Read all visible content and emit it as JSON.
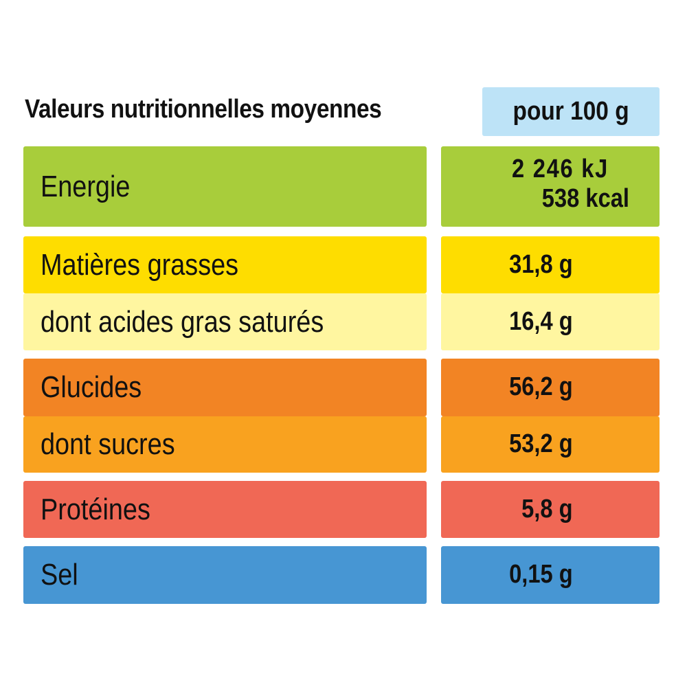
{
  "colors": {
    "unit_header_bg": "#bde3f7",
    "energie": "#a8cd3b",
    "matieres_grasses": "#fedd00",
    "acides_gras_satures": "#fff6a0",
    "glucides": "#f28424",
    "sucres": "#f9a21f",
    "proteines": "#f06855",
    "sel": "#4796d3"
  },
  "header": {
    "title": "Valeurs nutritionnelles moyennes",
    "unit": "pour 100 g"
  },
  "rows": [
    {
      "label": "Energie",
      "value_kj": "2 246 kJ",
      "value_kcal": "538 kcal"
    },
    {
      "label": "Matières grasses",
      "value": "31,8 g"
    },
    {
      "label": "dont acides gras saturés",
      "value": "16,4 g"
    },
    {
      "label": "Glucides",
      "value": "56,2 g"
    },
    {
      "label": "dont sucres",
      "value": "53,2 g"
    },
    {
      "label": "Protéines",
      "value": "5,8 g"
    },
    {
      "label": "Sel",
      "value": "0,15 g"
    }
  ]
}
